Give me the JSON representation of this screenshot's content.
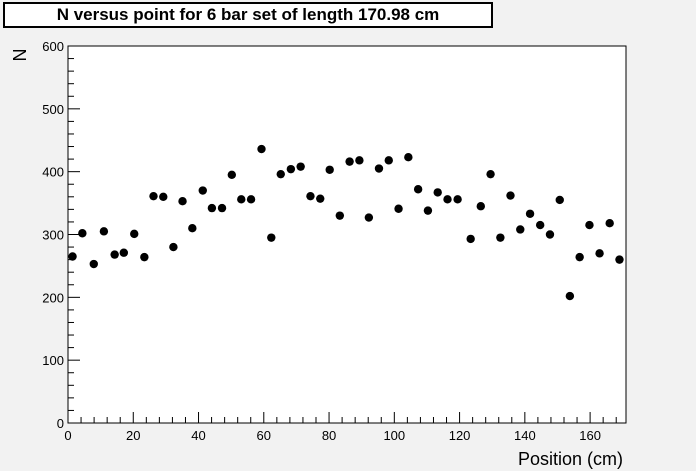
{
  "chart_data": {
    "type": "scatter",
    "title": "N versus point for 6 bar set of length 170.98 cm",
    "xlabel": "Position (cm)",
    "ylabel": "N",
    "xlim": [
      0,
      171
    ],
    "ylim": [
      0,
      600
    ],
    "x_ticks": [
      0,
      20,
      40,
      60,
      80,
      100,
      120,
      140,
      160
    ],
    "y_ticks": [
      0,
      100,
      200,
      300,
      400,
      500,
      600
    ],
    "grid": false,
    "legend": "none",
    "marker_color": "#000000",
    "series": [
      {
        "x": [
          1.4,
          4.4,
          7.9,
          11.0,
          14.3,
          17.1,
          20.3,
          23.4,
          26.2,
          29.2,
          32.3,
          35.1,
          38.1,
          41.3,
          44.1,
          47.2,
          50.2,
          53.1,
          56.1,
          59.3,
          62.3,
          65.2,
          68.3,
          71.3,
          74.3,
          77.3,
          80.2,
          83.3,
          86.3,
          89.3,
          92.2,
          95.3,
          98.3,
          101.3,
          104.3,
          107.3,
          110.3,
          113.3,
          116.3,
          119.4,
          123.4,
          126.5,
          129.5,
          132.5,
          135.6,
          138.6,
          141.6,
          144.7,
          147.7,
          150.7,
          153.8,
          156.8,
          159.8,
          162.9,
          166.0,
          169.0
        ],
        "y": [
          265,
          302,
          253,
          305,
          268,
          271,
          301,
          264,
          361,
          360,
          280,
          353,
          310,
          370,
          342,
          342,
          395,
          356,
          356,
          436,
          295,
          396,
          404,
          408,
          361,
          357,
          403,
          330,
          416,
          418,
          327,
          405,
          418,
          341,
          423,
          372,
          338,
          367,
          356,
          356,
          293,
          345,
          396,
          295,
          362,
          308,
          333,
          315,
          300,
          355,
          202,
          264,
          315,
          270,
          318,
          260
        ]
      }
    ]
  }
}
